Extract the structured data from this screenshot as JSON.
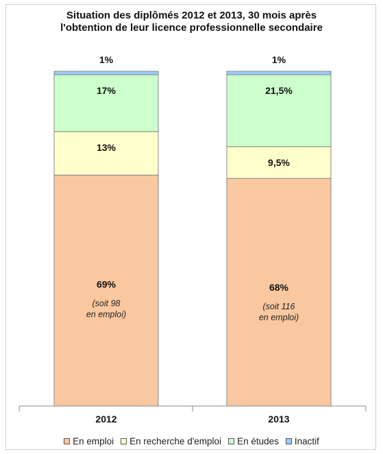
{
  "chart_data": {
    "type": "bar",
    "stacked": true,
    "title_lines": [
      "Situation des diplômés  2012 et 2013, 30 mois après",
      "l'obtention de leur licence  professionnelle secondaire"
    ],
    "categories": [
      "2012",
      "2013"
    ],
    "series": [
      {
        "name": "En emploi",
        "values": [
          69,
          68
        ],
        "labels": [
          "69%",
          "68%"
        ],
        "notes": [
          "(soit 98\nen emploi)",
          "(soit 116\nen emploi)"
        ]
      },
      {
        "name": "En recherche d'emploi",
        "values": [
          13,
          9.5
        ],
        "labels": [
          "13%",
          "9,5%"
        ]
      },
      {
        "name": "En études",
        "values": [
          17,
          21.5
        ],
        "labels": [
          "17%",
          "21,5%"
        ]
      },
      {
        "name": "Inactif",
        "values": [
          1,
          1
        ],
        "labels": [
          "1%",
          "1%"
        ]
      }
    ],
    "ylim": [
      0,
      100
    ],
    "grid": false,
    "legend_position": "bottom"
  },
  "colors": {
    "series": [
      "#FAC8A0",
      "#FFFFCC",
      "#CCFFCC",
      "#99CCFF"
    ],
    "bar_border": "#888888",
    "axis": "#888888"
  }
}
